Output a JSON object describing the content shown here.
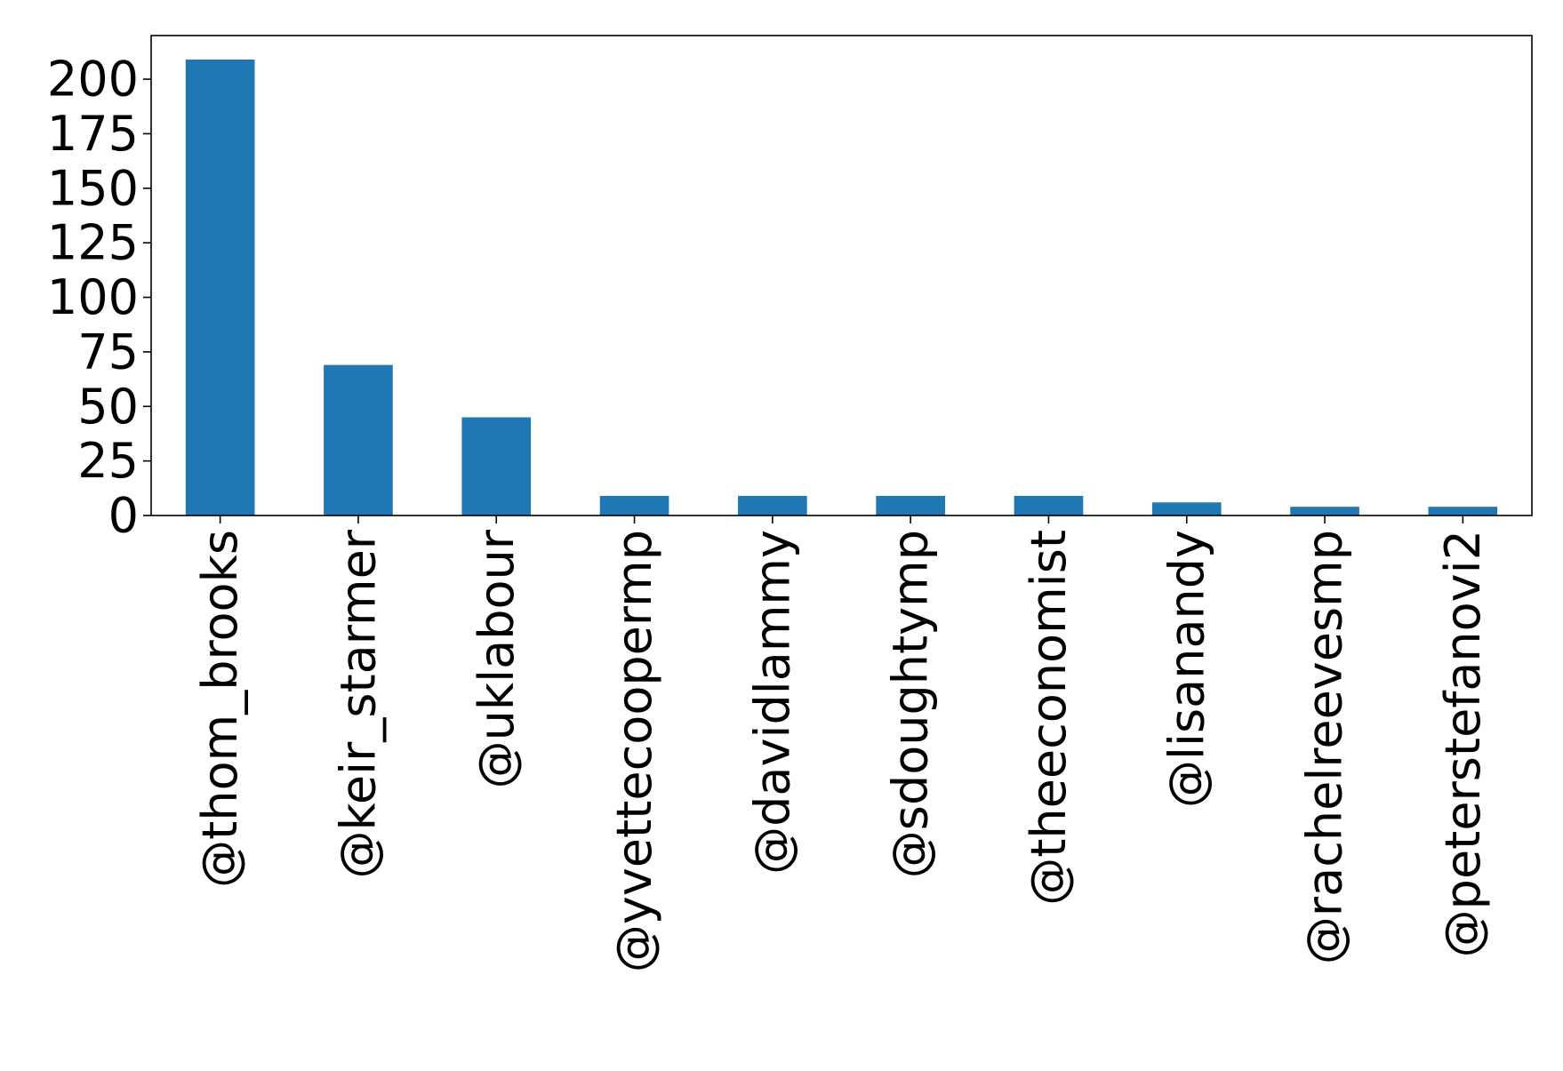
{
  "chart_data": {
    "type": "bar",
    "title": "",
    "xlabel": "",
    "ylabel": "",
    "categories": [
      "@thom_brooks",
      "@keir_starmer",
      "@uklabour",
      "@yvettecoopermp",
      "@davidlammy",
      "@sdoughtymp",
      "@theeconomist",
      "@lisanandy",
      "@rachelreevesmp",
      "@peterstefanovi2"
    ],
    "values": [
      209,
      69,
      45,
      9,
      9,
      9,
      9,
      6,
      4,
      4
    ],
    "ylim": [
      0,
      220
    ],
    "yticks": [
      0,
      25,
      50,
      75,
      100,
      125,
      150,
      175,
      200
    ],
    "ytick_labels": [
      "0",
      "25",
      "50",
      "75",
      "100",
      "125",
      "150",
      "175",
      "200"
    ],
    "grid": false,
    "legend": "none",
    "colors": {
      "bar": "#1f77b4",
      "axis": "#000000",
      "background": "#ffffff"
    }
  }
}
